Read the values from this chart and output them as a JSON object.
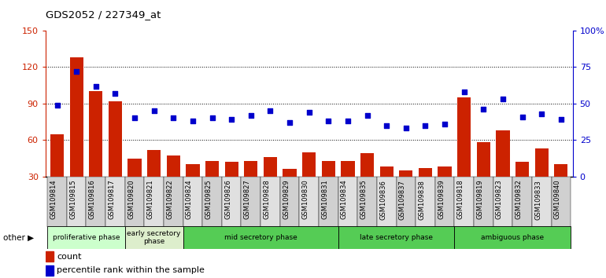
{
  "title": "GDS2052 / 227349_at",
  "samples": [
    "GSM109814",
    "GSM109815",
    "GSM109816",
    "GSM109817",
    "GSM109820",
    "GSM109821",
    "GSM109822",
    "GSM109824",
    "GSM109825",
    "GSM109826",
    "GSM109827",
    "GSM109828",
    "GSM109829",
    "GSM109830",
    "GSM109831",
    "GSM109834",
    "GSM109835",
    "GSM109836",
    "GSM109837",
    "GSM109838",
    "GSM109839",
    "GSM109818",
    "GSM109819",
    "GSM109823",
    "GSM109832",
    "GSM109833",
    "GSM109840"
  ],
  "counts": [
    65,
    128,
    100,
    92,
    45,
    52,
    47,
    40,
    43,
    42,
    43,
    46,
    36,
    50,
    43,
    43,
    49,
    38,
    35,
    37,
    38,
    95,
    58,
    68,
    42,
    53,
    40
  ],
  "percentile": [
    49,
    72,
    62,
    57,
    40,
    45,
    40,
    38,
    40,
    39,
    42,
    45,
    37,
    44,
    38,
    38,
    42,
    35,
    33,
    35,
    36,
    58,
    46,
    53,
    41,
    43,
    39
  ],
  "bar_color": "#cc2200",
  "dot_color": "#0000cc",
  "left_ylim": [
    30,
    150
  ],
  "right_ylim": [
    0,
    100
  ],
  "left_yticks": [
    30,
    60,
    90,
    120,
    150
  ],
  "right_yticks": [
    0,
    25,
    50,
    75,
    100
  ],
  "right_yticklabels": [
    "0",
    "25",
    "50",
    "75",
    "100%"
  ],
  "hgrid_vals": [
    60,
    90,
    120
  ],
  "phase_configs": [
    {
      "label": "proliferative phase",
      "start": 0,
      "end": 3,
      "color": "#ccffcc"
    },
    {
      "label": "early secretory\nphase",
      "start": 4,
      "end": 6,
      "color": "#ddeecc"
    },
    {
      "label": "mid secretory phase",
      "start": 7,
      "end": 14,
      "color": "#55cc55"
    },
    {
      "label": "late secretory phase",
      "start": 15,
      "end": 20,
      "color": "#55cc55"
    },
    {
      "label": "ambiguous phase",
      "start": 21,
      "end": 26,
      "color": "#55cc55"
    }
  ],
  "legend_items": [
    {
      "label": "count",
      "color": "#cc2200"
    },
    {
      "label": "percentile rank within the sample",
      "color": "#0000cc"
    }
  ],
  "n_samples": 27
}
